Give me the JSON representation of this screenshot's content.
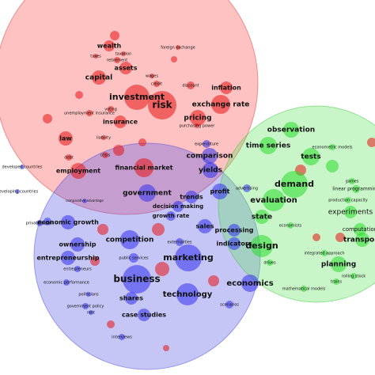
{
  "clusters": [
    {
      "terms": [
        "wealth",
        "taxation",
        "taxes",
        "retirement",
        "foreign exchange",
        "assets",
        "capital",
        "wages",
        "credit",
        "discount",
        "inflation",
        "investment",
        "risk",
        "exchange rate",
        "voting",
        "unemployment insurance",
        "pricing",
        "insurance",
        "purchasing power",
        "law",
        "liability",
        "debt",
        "crisis",
        "employment",
        "financial market"
      ]
    },
    {
      "terms": [
        "expenditure",
        "comparison",
        "developed countries",
        "yields",
        "developing countries",
        "government",
        "trends",
        "profit",
        "advertising",
        "comparative advantage",
        "decision making",
        "growth rate",
        "private sector",
        "economic growth",
        "sales",
        "processing",
        "ownership",
        "competition",
        "externalities",
        "indicators",
        "entrepreneurship",
        "public services",
        "marketing",
        "entrepreneurs",
        "business",
        "economic performance",
        "politicians",
        "technology",
        "economics",
        "shares",
        "government policy",
        "scenarios",
        "rent",
        "case studies",
        "interviews"
      ]
    },
    {
      "terms": [
        "observation",
        "time series",
        "econometric models",
        "tests",
        "demand",
        "evaluation",
        "games",
        "linear programming",
        "production capacity",
        "experiments",
        "state",
        "economists",
        "computation",
        "transport",
        "design",
        "integrated approach",
        "drives",
        "planning",
        "rolling stock",
        "trains",
        "mathematical models"
      ]
    }
  ]
}
